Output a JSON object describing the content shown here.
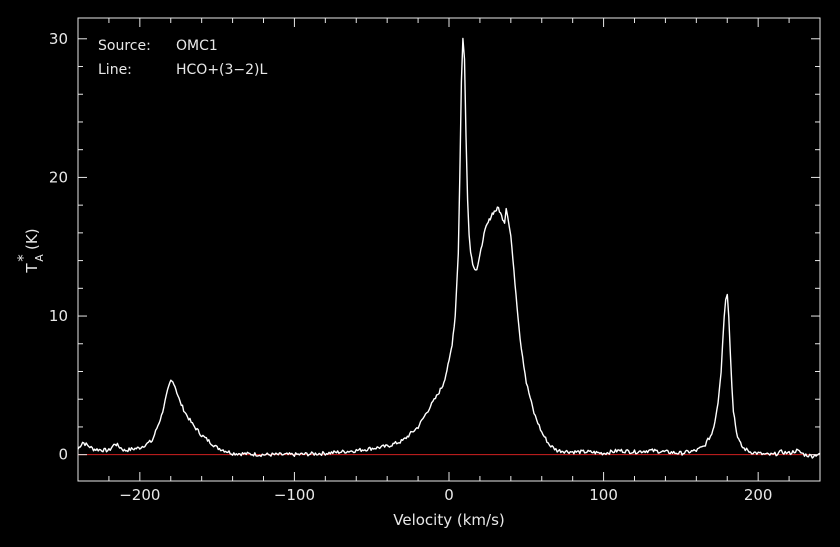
{
  "chart_data": {
    "type": "line",
    "annotations": {
      "source_label": "Source:",
      "source_value": "OMC1",
      "line_label": "Line:",
      "line_value": "HCO+(3−2)L"
    },
    "xlabel": "Velocity (km/s)",
    "ylabel": "T",
    "ylabel_sub": "A",
    "ylabel_sup": "*",
    "ylabel_unit": "(K)",
    "xlim": [
      -240,
      240
    ],
    "ylim": [
      -1.9,
      31.5
    ],
    "xticks": [
      {
        "value": -200,
        "label": "−200"
      },
      {
        "value": -100,
        "label": "−100"
      },
      {
        "value": 0,
        "label": "0"
      },
      {
        "value": 100,
        "label": "100"
      },
      {
        "value": 200,
        "label": "200"
      }
    ],
    "yticks": [
      {
        "value": 0,
        "label": "0"
      },
      {
        "value": 10,
        "label": "10"
      },
      {
        "value": 20,
        "label": "20"
      },
      {
        "value": 30,
        "label": "30"
      }
    ],
    "baseline": {
      "value": 0,
      "color": "#d02020"
    },
    "series": [
      {
        "color": "#ffffff",
        "x": [
          -240,
          -237,
          -230,
          -220,
          -216,
          -210,
          -200,
          -192,
          -186,
          -182,
          -180,
          -178,
          -176,
          -174,
          -170,
          -166,
          -160,
          -150,
          -140,
          -120,
          -100,
          -80,
          -60,
          -40,
          -30,
          -20,
          -12,
          -8,
          -4,
          -2,
          0,
          2,
          4,
          6,
          7,
          8,
          9,
          10,
          11,
          12,
          13,
          14,
          16,
          18,
          20,
          22,
          24,
          26,
          28,
          30,
          32,
          34,
          36,
          37,
          38,
          39,
          40,
          42,
          44,
          46,
          50,
          55,
          60,
          65,
          70,
          80,
          90,
          100,
          110,
          120,
          130,
          140,
          150,
          160,
          165,
          170,
          172,
          174,
          176,
          177,
          178,
          179,
          180,
          181,
          182,
          183,
          184,
          186,
          188,
          190,
          195,
          200,
          205,
          210,
          215,
          220,
          225,
          230,
          235,
          240
        ],
        "y": [
          0.4,
          0.9,
          0.4,
          0.3,
          0.8,
          0.3,
          0.5,
          1.0,
          2.8,
          4.6,
          5.3,
          5.2,
          4.5,
          3.8,
          2.9,
          2.2,
          1.4,
          0.5,
          0.1,
          0.0,
          0.0,
          0.1,
          0.3,
          0.6,
          1.0,
          2.0,
          3.5,
          4.2,
          5.0,
          5.8,
          6.7,
          8.0,
          10.0,
          14.5,
          20.0,
          27.0,
          30.0,
          28.5,
          23.0,
          18.5,
          16.0,
          14.6,
          13.5,
          13.4,
          14.3,
          15.6,
          16.4,
          16.9,
          17.4,
          17.6,
          17.8,
          17.2,
          16.8,
          17.8,
          17.3,
          16.5,
          15.8,
          13.2,
          10.8,
          8.4,
          5.2,
          3.0,
          1.6,
          0.7,
          0.3,
          0.2,
          0.2,
          0.1,
          0.3,
          0.2,
          0.3,
          0.2,
          0.1,
          0.3,
          0.6,
          1.5,
          2.4,
          3.8,
          6.0,
          8.0,
          10.0,
          11.3,
          11.5,
          10.0,
          7.5,
          5.0,
          3.2,
          1.6,
          0.9,
          0.5,
          0.2,
          0.1,
          0.0,
          0.0,
          0.2,
          0.1,
          0.3,
          0.0,
          -0.1,
          0.1
        ]
      }
    ]
  }
}
